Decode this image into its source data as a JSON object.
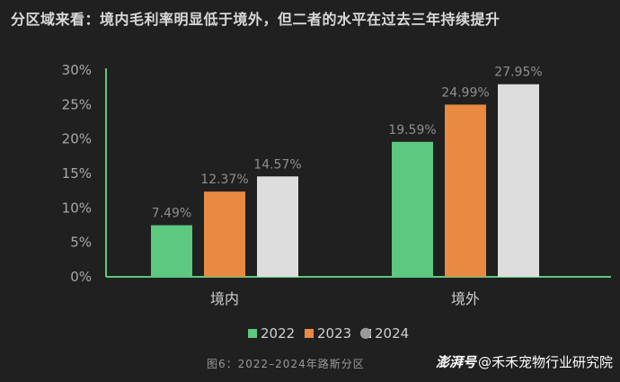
{
  "header": {
    "title": "分区域来看：境内毛利率明显低于境外，但二者的水平在过去三年持续提升"
  },
  "chart_data": {
    "type": "bar",
    "categories": [
      "境内",
      "境外"
    ],
    "series": [
      {
        "name": "2022",
        "color": "#5cc880",
        "values": [
          7.49,
          19.59
        ],
        "labels": [
          "7.49%",
          "19.59%"
        ]
      },
      {
        "name": "2023",
        "color": "#e88a42",
        "values": [
          12.37,
          24.99
        ],
        "labels": [
          "12.37%",
          "24.99%"
        ]
      },
      {
        "name": "2024",
        "color": "#dddddd",
        "values": [
          14.57,
          27.95
        ],
        "labels": [
          "14.57%",
          "27.95%"
        ]
      }
    ],
    "ylim": [
      0,
      30
    ],
    "yticks": [
      0,
      5,
      10,
      15,
      20,
      25,
      30
    ],
    "ytick_labels": [
      "0%",
      "5%",
      "10%",
      "15%",
      "20%",
      "25%",
      "30%"
    ],
    "axis_color": "#5cc880",
    "legend_position": "bottom",
    "grid": false
  },
  "footer": {
    "caption": "图6：2022–2024年路斯分区",
    "brand_logo": "澎湃号",
    "brand_text": "@禾禾宠物行业研究院"
  },
  "icons": {
    "watermark": "wechat-icon"
  }
}
